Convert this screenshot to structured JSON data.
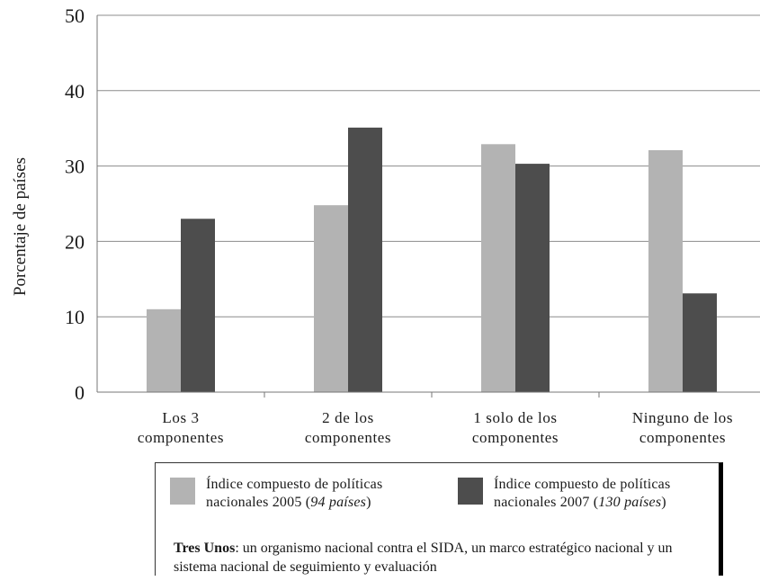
{
  "chart_data": {
    "type": "bar",
    "categories": [
      [
        "Los 3",
        "componentes"
      ],
      [
        "2 de los",
        "componentes"
      ],
      [
        "1 solo de los",
        "componentes"
      ],
      [
        "Ninguno de los",
        "componentes"
      ]
    ],
    "series": [
      {
        "name_main": "Índice compuesto de políticas",
        "name_line2_prefix": "nacionales 2005 (",
        "name_italic": "94 países",
        "name_suffix": ")",
        "color": "#b3b3b3",
        "values": [
          11,
          24.8,
          32.9,
          32.1
        ]
      },
      {
        "name_main": "Índice compuesto de políticas",
        "name_line2_prefix": "nacionales 2007 (",
        "name_italic": "130 países",
        "name_suffix": ")",
        "color": "#4d4d4d",
        "values": [
          23,
          35.1,
          30.3,
          13.1
        ]
      }
    ],
    "ylabel": "Porcentaje de países",
    "ylim": [
      0,
      50
    ],
    "yticks": [
      0,
      10,
      20,
      30,
      40,
      50
    ],
    "grid": true,
    "note_bold": "Tres Unos",
    "note_text": ": un organismo nacional contra el SIDA, un marco estratégico nacional y un sistema nacional de seguimiento y evaluación"
  }
}
